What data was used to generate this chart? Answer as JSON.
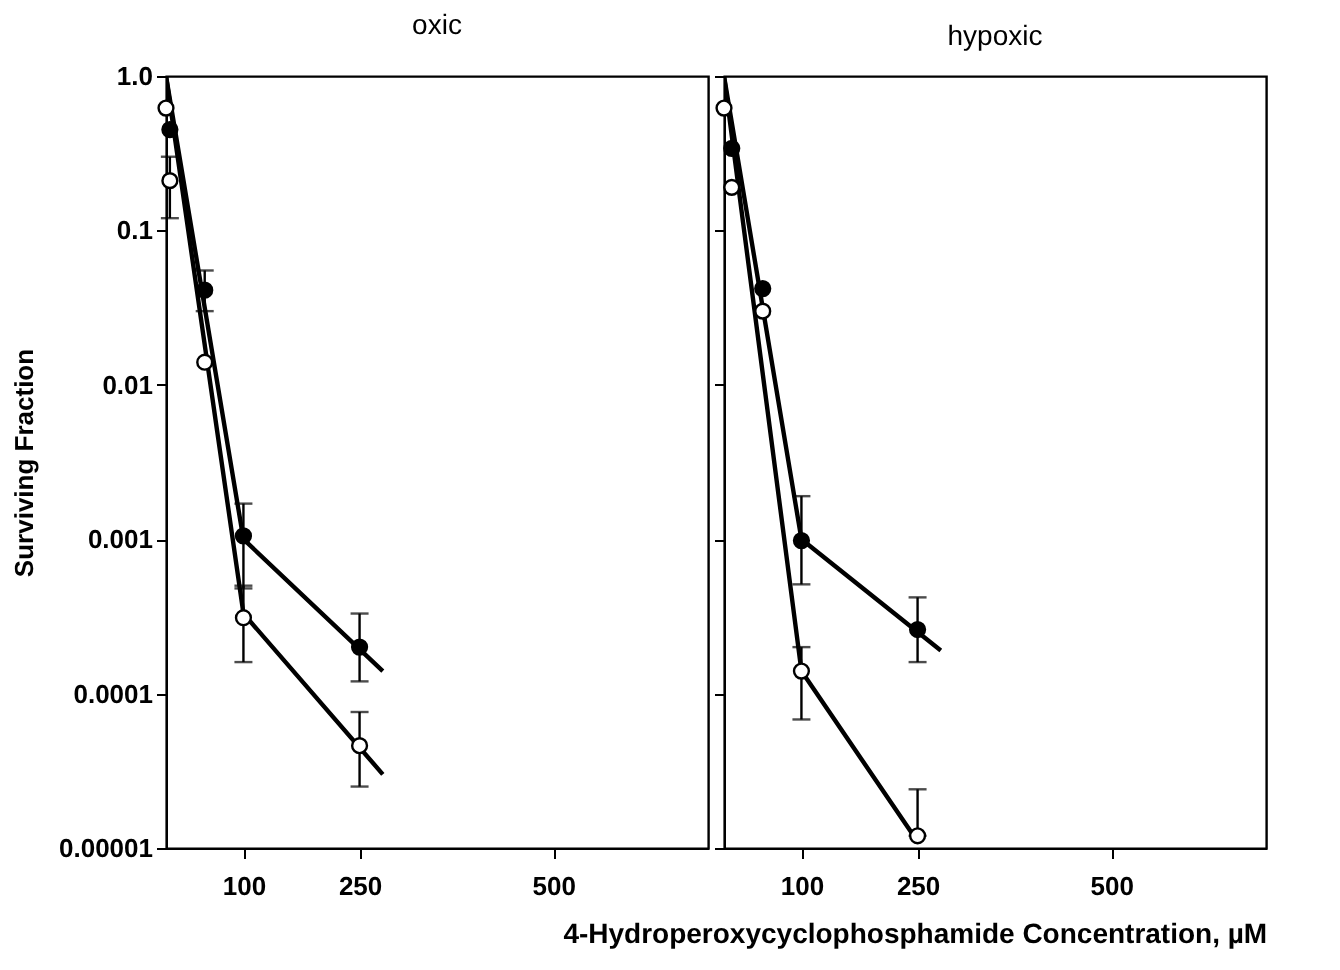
{
  "chart_data": [
    {
      "type": "scatter",
      "title": "oxic",
      "xlabel": "4-Hydroperoxycyclophosphamide Concentration, µM",
      "ylabel": "Surviving Fraction",
      "xlim": [
        0,
        700
      ],
      "xticks": [
        100,
        250,
        500
      ],
      "ylim": [
        1e-05,
        1
      ],
      "yticks": [
        {
          "value": 1,
          "label": "1.0"
        },
        0.1,
        0.01,
        0.001,
        0.0001,
        {
          "value": 1e-05,
          "label": "0.00001"
        }
      ],
      "log": "y",
      "line_style": "solid",
      "series": [
        {
          "marker": "circle",
          "color": "#000000",
          "x": [
            5,
            50,
            100,
            250
          ],
          "values": [
            0.45,
            0.041,
            0.00105,
            0.0002
          ],
          "errors": [
            null,
            [
              0.03,
              0.055
            ],
            [
              0.00048,
              0.0017
            ],
            [
              0.00012,
              0.00033
            ]
          ]
        },
        {
          "marker": "circle",
          "color": "#ffffff",
          "x": [
            0,
            5,
            50,
            100,
            250
          ],
          "values": [
            0.62,
            0.21,
            0.014,
            0.00031,
            4.6e-05
          ],
          "errors": [
            null,
            [
              0.12,
              0.3
            ],
            null,
            [
              0.00016,
              0.0005
            ],
            [
              2.5e-05,
              7.6e-05
            ]
          ]
        },
        {
          "type": "line",
          "marker": "none",
          "color": "#000000",
          "x": [
            0,
            100,
            280
          ],
          "values": [
            1,
            0.001,
            0.00014
          ]
        },
        {
          "type": "line",
          "marker": "none",
          "color": "#000000",
          "x": [
            0,
            100,
            280
          ],
          "values": [
            1,
            0.00033,
            3e-05
          ]
        }
      ]
    },
    {
      "type": "scatter",
      "title": "hypoxic",
      "xlim": [
        0,
        700
      ],
      "xticks": [
        100,
        250,
        500
      ],
      "ylim": [
        1e-05,
        1
      ],
      "yticks": [
        1,
        0.1,
        0.01,
        0.001,
        0.0001,
        1e-05
      ],
      "tick_labels": "x",
      "log": "y",
      "line_style": "solid",
      "series": [
        {
          "marker": "circle",
          "color": "#000000",
          "x": [
            10,
            50,
            100,
            250
          ],
          "values": [
            0.34,
            0.042,
            0.00098,
            0.00026
          ],
          "errors": [
            null,
            null,
            [
              0.00051,
              0.0019
            ],
            [
              0.00016,
              0.00042
            ]
          ]
        },
        {
          "marker": "circle",
          "color": "#ffffff",
          "x": [
            0,
            10,
            50,
            100,
            250
          ],
          "values": [
            0.62,
            0.19,
            0.03,
            0.00014,
            1.2e-05
          ],
          "errors": [
            null,
            null,
            null,
            [
              6.8e-05,
              0.0002
            ],
            [
              1.2e-05,
              2.4e-05
            ]
          ]
        },
        {
          "type": "line",
          "marker": "none",
          "color": "#000000",
          "x": [
            0,
            100,
            280
          ],
          "values": [
            1,
            0.001,
            0.00019
          ]
        },
        {
          "type": "line",
          "marker": "none",
          "color": "#000000",
          "x": [
            0,
            100,
            250
          ],
          "values": [
            1,
            0.00014,
            1.1e-05
          ]
        }
      ]
    }
  ]
}
